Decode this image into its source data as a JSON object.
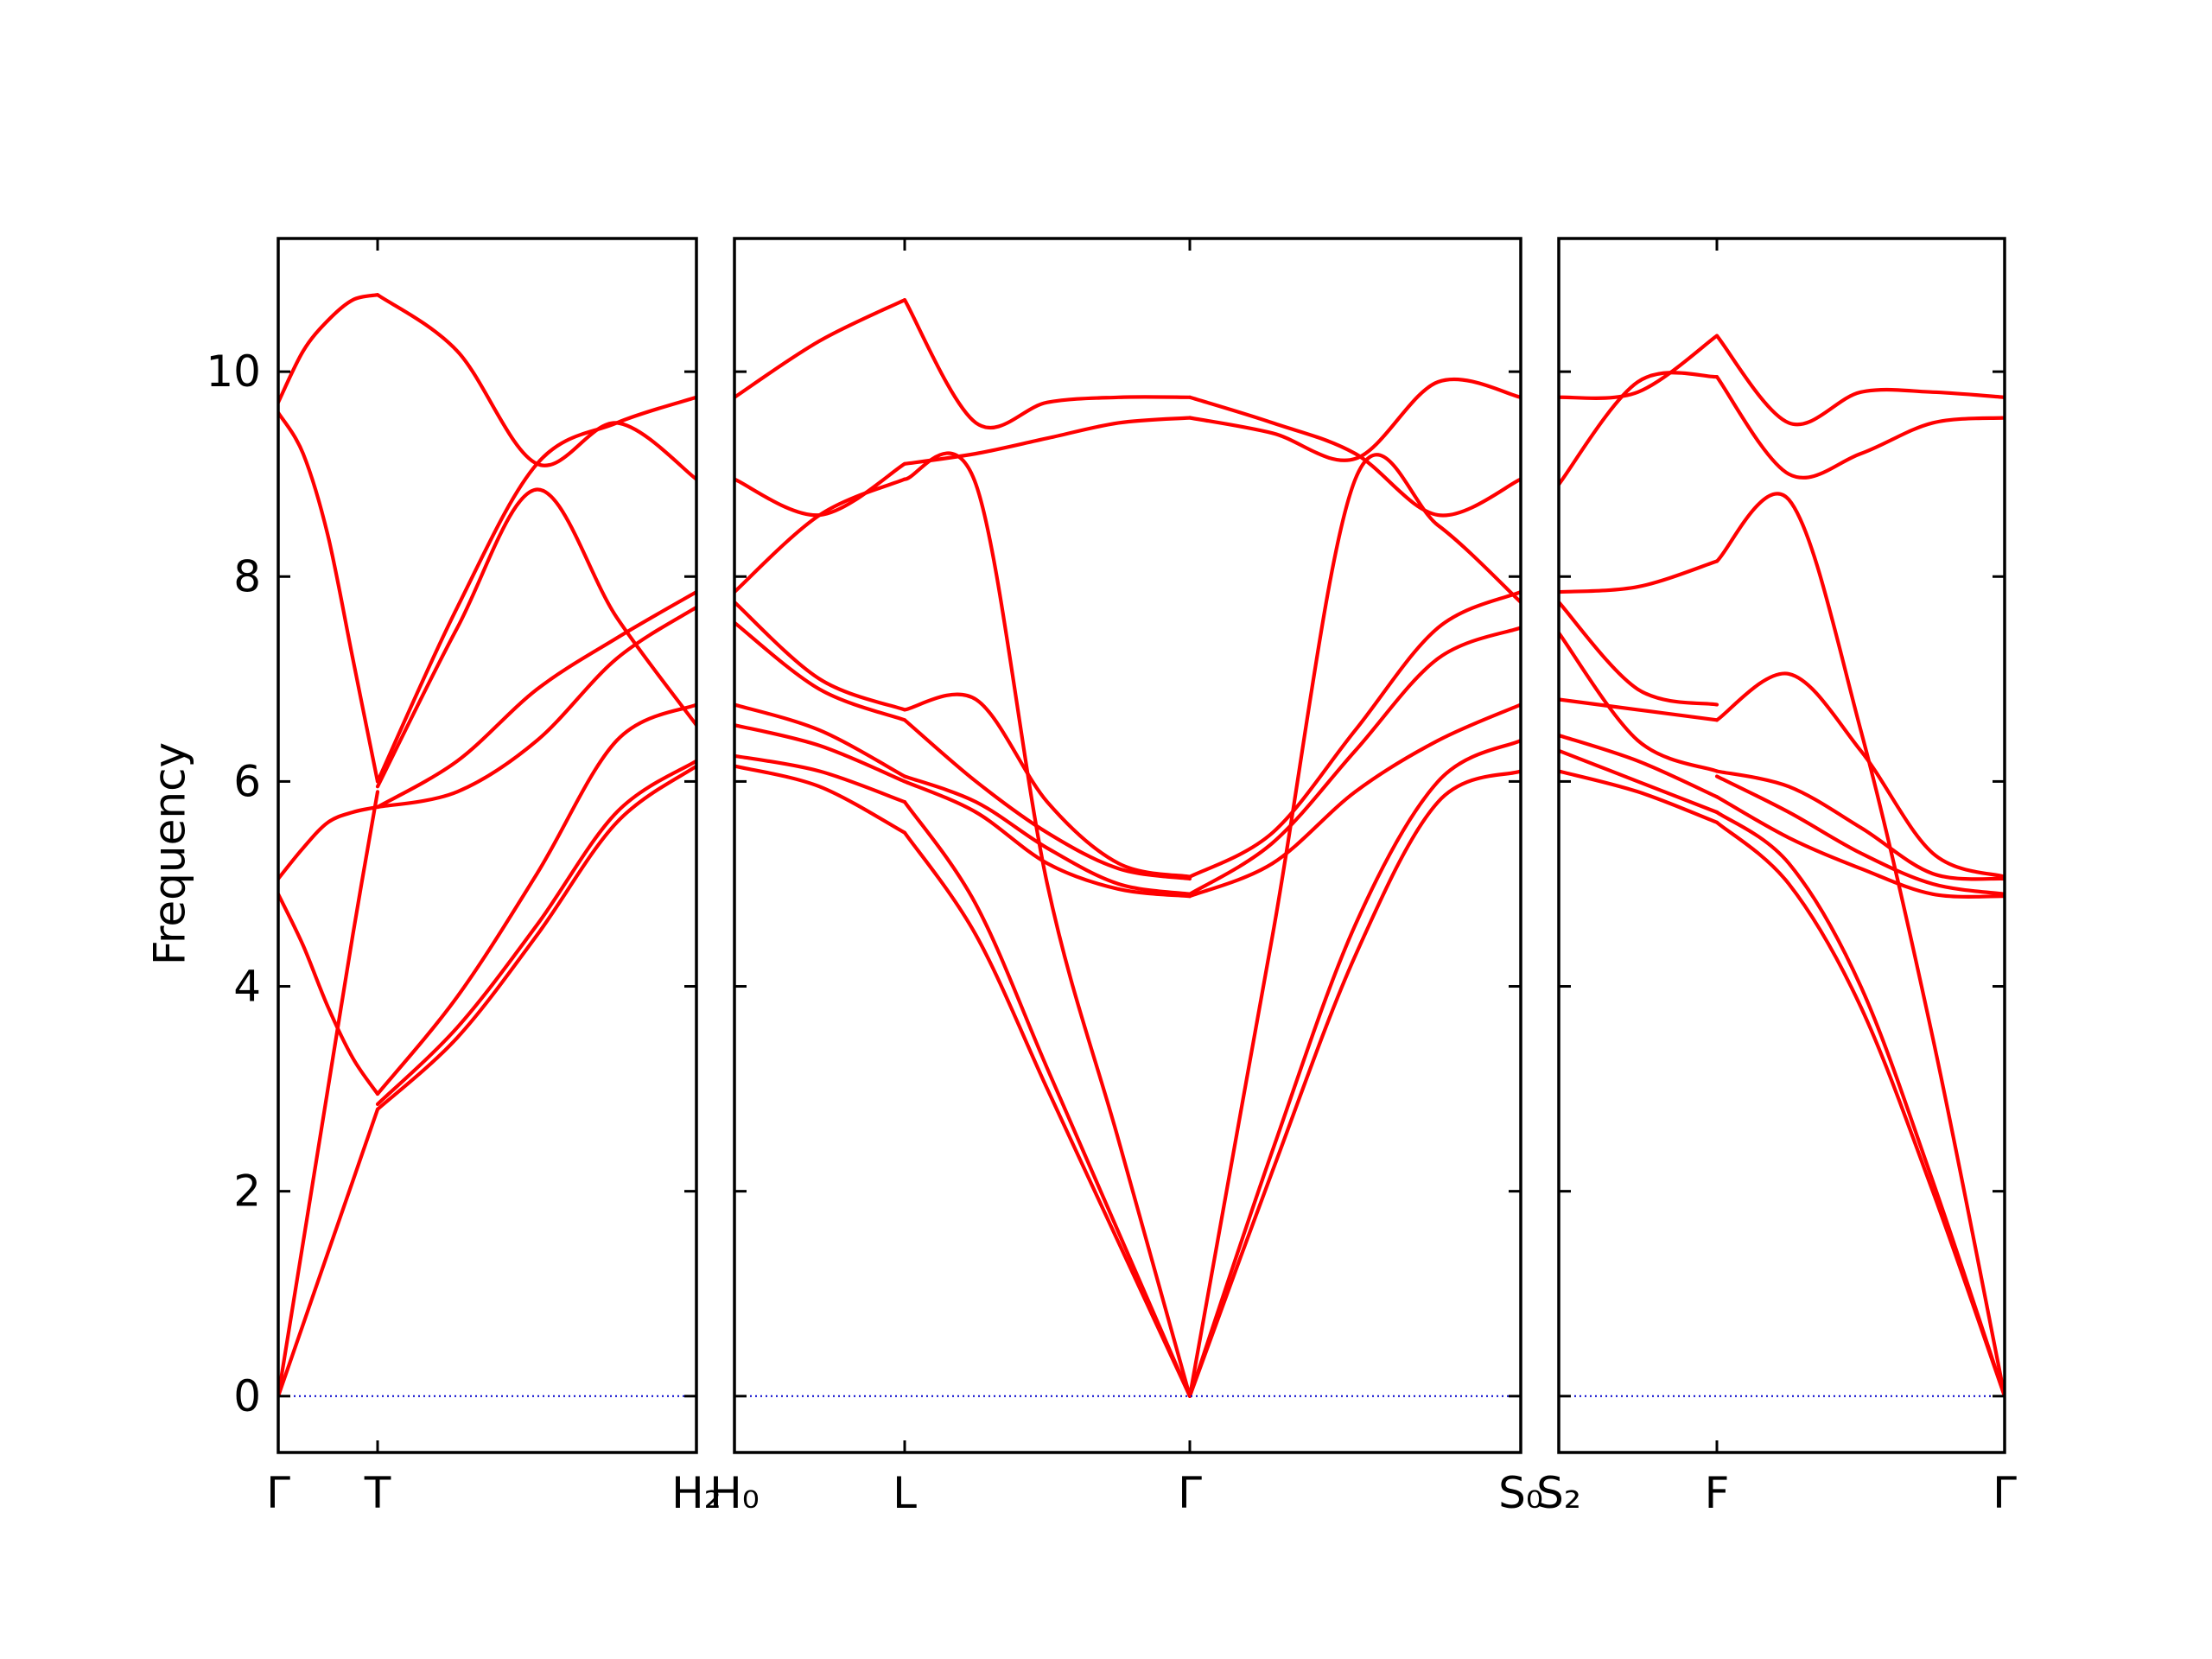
{
  "chart_data": {
    "type": "line",
    "ylabel": "Frequency",
    "ylim": [
      -0.55,
      11.3
    ],
    "yticks": [
      0,
      2,
      4,
      6,
      8,
      10
    ],
    "grid": false,
    "colors": {
      "bands": "#ff0000",
      "zero_line": "#0000cc",
      "frame": "#000000"
    },
    "x_tick_labels": {
      "panel1": [
        "Γ",
        "T",
        "H₂"
      ],
      "panel2": [
        "H₀",
        "L",
        "Γ",
        "S₀"
      ],
      "panel3": [
        "S₂",
        "F",
        "Γ"
      ]
    },
    "panels": [
      {
        "segments": [
          {
            "from": "Γ",
            "to": "T",
            "x": [
              0,
              0.25,
              0.5,
              0.75,
              1
            ],
            "series": [
              {
                "values": [
                  0,
                  0.7,
                  1.4,
                  2.1,
                  2.8
                ]
              },
              {
                "values": [
                  0,
                  1.5,
                  3.0,
                  4.5,
                  5.9
                ]
              },
              {
                "values": [
                  4.9,
                  4.4,
                  3.8,
                  3.3,
                  2.95
                ]
              },
              {
                "values": [
                  5.05,
                  5.35,
                  5.6,
                  5.7,
                  5.75
                ]
              },
              {
                "values": [
                  9.6,
                  9.2,
                  8.4,
                  7.2,
                  6.0
                ]
              },
              {
                "values": [
                  9.7,
                  10.2,
                  10.5,
                  10.7,
                  10.75
                ]
              }
            ]
          },
          {
            "from": "T",
            "to": "H₂",
            "x": [
              0,
              0.25,
              0.5,
              0.75,
              1
            ],
            "series": [
              {
                "values": [
                  2.8,
                  3.5,
                  4.5,
                  5.6,
                  6.15
                ]
              },
              {
                "values": [
                  2.85,
                  3.6,
                  4.6,
                  5.7,
                  6.2
                ]
              },
              {
                "values": [
                  2.95,
                  3.9,
                  5.1,
                  6.4,
                  6.75
                ]
              },
              {
                "values": [
                  5.75,
                  5.9,
                  6.4,
                  7.2,
                  7.7
                ]
              },
              {
                "values": [
                  5.75,
                  6.2,
                  6.9,
                  7.4,
                  7.85
                ]
              },
              {
                "values": [
                  5.95,
                  7.5,
                  8.85,
                  7.6,
                  6.55
                ]
              },
              {
                "values": [
                  6.0,
                  7.7,
                  9.1,
                  9.5,
                  9.75
                ]
              },
              {
                "values": [
                  10.75,
                  10.2,
                  9.1,
                  9.5,
                  8.95
                ]
              }
            ]
          }
        ]
      },
      {
        "segments": [
          {
            "from": "H₀",
            "to": "L",
            "x": [
              0,
              0.5,
              1
            ],
            "series": [
              {
                "values": [
                  6.15,
                  5.95,
                  5.5
                ]
              },
              {
                "values": [
                  6.25,
                  6.1,
                  5.8
                ]
              },
              {
                "values": [
                  6.55,
                  6.35,
                  6.0
                ]
              },
              {
                "values": [
                  6.75,
                  6.5,
                  6.05
                ]
              },
              {
                "values": [
                  7.55,
                  6.9,
                  6.6
                ]
              },
              {
                "values": [
                  7.75,
                  7.0,
                  6.7
                ]
              },
              {
                "values": [
                  7.85,
                  8.6,
                  8.95
                ]
              },
              {
                "values": [
                  8.95,
                  8.6,
                  9.1
                ]
              },
              {
                "values": [
                  9.75,
                  10.3,
                  10.7
                ]
              }
            ]
          },
          {
            "from": "L",
            "to": "Γ",
            "x": [
              0,
              0.25,
              0.5,
              0.75,
              1
            ],
            "series": [
              {
                "values": [
                  5.5,
                  4.5,
                  3.0,
                  1.5,
                  0
                ]
              },
              {
                "values": [
                  5.8,
                  4.8,
                  3.2,
                  1.6,
                  0
                ]
              },
              {
                "values": [
                  6.0,
                  5.7,
                  5.2,
                  4.95,
                  4.88
                ]
              },
              {
                "values": [
                  6.05,
                  5.8,
                  5.35,
                  5.0,
                  4.9
                ]
              },
              {
                "values": [
                  6.6,
                  6.0,
                  5.5,
                  5.15,
                  5.05
                ]
              },
              {
                "values": [
                  6.7,
                  6.8,
                  5.8,
                  5.2,
                  5.07
                ]
              },
              {
                "values": [
                  8.95,
                  8.9,
                  5.0,
                  2.5,
                  0
                ]
              },
              {
                "values": [
                  9.1,
                  9.2,
                  9.35,
                  9.5,
                  9.55
                ]
              },
              {
                "values": [
                  10.7,
                  9.5,
                  9.7,
                  9.75,
                  9.75
                ]
              }
            ]
          },
          {
            "from": "Γ",
            "to": "S₀",
            "x": [
              0,
              0.25,
              0.5,
              0.75,
              1
            ],
            "series": [
              {
                "values": [
                  0,
                  2.2,
                  4.3,
                  5.8,
                  6.1
                ]
              },
              {
                "values": [
                  0,
                  2.4,
                  4.6,
                  6.0,
                  6.4
                ]
              },
              {
                "values": [
                  4.88,
                  5.2,
                  5.9,
                  6.4,
                  6.75
                ]
              },
              {
                "values": [
                  4.9,
                  5.4,
                  6.3,
                  7.2,
                  7.5
                ]
              },
              {
                "values": [
                  5.07,
                  5.5,
                  6.5,
                  7.5,
                  7.85
                ]
              },
              {
                "values": [
                  0,
                  4.5,
                  8.95,
                  8.5,
                  7.75
                ]
              },
              {
                "values": [
                  9.55,
                  9.4,
                  9.15,
                  9.9,
                  9.75
                ]
              },
              {
                "values": [
                  9.75,
                  9.5,
                  9.2,
                  8.6,
                  8.95
                ]
              }
            ]
          }
        ]
      },
      {
        "segments": [
          {
            "from": "S₂",
            "to": "F",
            "x": [
              0,
              0.5,
              1
            ],
            "series": [
              {
                "values": [
                  6.1,
                  5.9,
                  5.6
                ]
              },
              {
                "values": [
                  6.3,
                  6.0,
                  5.7
                ]
              },
              {
                "values": [
                  6.45,
                  6.2,
                  5.85
                ]
              },
              {
                "values": [
                  6.8,
                  6.7,
                  6.6
                ]
              },
              {
                "values": [
                  7.45,
                  6.4,
                  6.1
                ]
              },
              {
                "values": [
                  7.75,
                  6.9,
                  6.75
                ]
              },
              {
                "values": [
                  7.85,
                  7.9,
                  8.15
                ]
              },
              {
                "values": [
                  8.9,
                  9.9,
                  9.95
                ]
              },
              {
                "values": [
                  9.75,
                  9.8,
                  10.35
                ]
              }
            ]
          },
          {
            "from": "F",
            "to": "Γ",
            "x": [
              0,
              0.25,
              0.5,
              0.75,
              1
            ],
            "series": [
              {
                "values": [
                  5.6,
                  5.0,
                  3.8,
                  2.0,
                  0
                ]
              },
              {
                "values": [
                  5.7,
                  5.2,
                  4.0,
                  2.1,
                  0
                ]
              },
              {
                "values": [
                  5.85,
                  5.45,
                  5.15,
                  4.9,
                  4.88
                ]
              },
              {
                "values": [
                  6.05,
                  5.7,
                  5.3,
                  5.0,
                  4.9
                ]
              },
              {
                "values": [
                  6.1,
                  5.95,
                  5.55,
                  5.1,
                  5.05
                ]
              },
              {
                "values": [
                  6.6,
                  7.05,
                  6.3,
                  5.3,
                  5.07
                ]
              },
              {
                "values": [
                  8.15,
                  8.75,
                  6.5,
                  3.5,
                  0
                ]
              },
              {
                "values": [
                  9.95,
                  9.0,
                  9.2,
                  9.5,
                  9.55
                ]
              },
              {
                "values": [
                  10.35,
                  9.5,
                  9.8,
                  9.8,
                  9.75
                ]
              }
            ]
          }
        ]
      }
    ]
  }
}
